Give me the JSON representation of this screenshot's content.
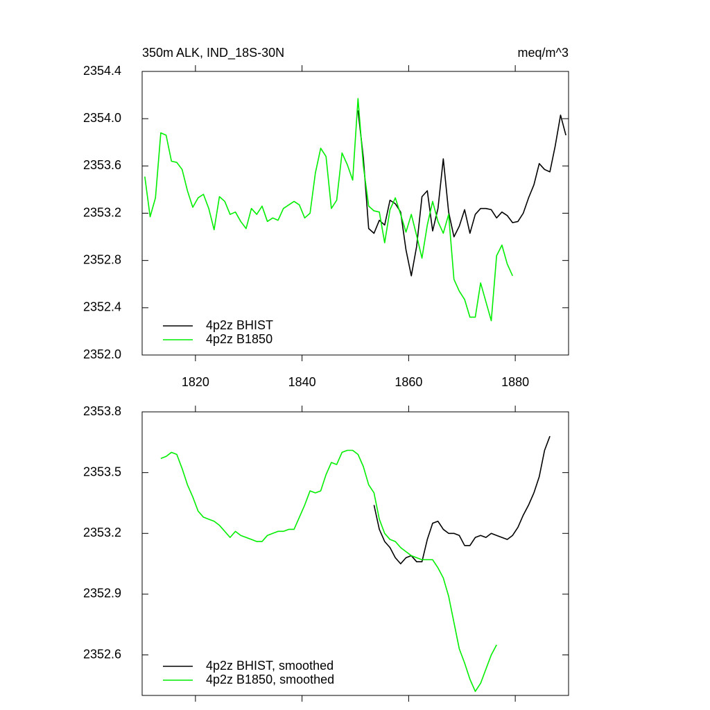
{
  "chart_data": [
    {
      "type": "line",
      "title": "350m ALK, IND_18S-30N",
      "subtitle": "meq/m^3",
      "xlim": [
        1810,
        1890
      ],
      "xticks": [
        1820,
        1840,
        1860,
        1880
      ],
      "ylim": [
        2352.0,
        2354.4
      ],
      "yticks": [
        {
          "value": 2352.0,
          "label": "2352.0"
        },
        2352.4,
        2352.8,
        2353.2,
        2353.6,
        {
          "value": 2354.0,
          "label": "2354.0"
        },
        2354.4
      ],
      "legend": "lower left",
      "series": [
        {
          "name": "4p2z BHIST",
          "color": "#000000",
          "x": [
            1850.5,
            1851.5,
            1852.5,
            1853.5,
            1854.5,
            1855.5,
            1856.5,
            1857.5,
            1858.5,
            1859.5,
            1860.5,
            1861.5,
            1862.5,
            1863.5,
            1864.5,
            1865.5,
            1866.5,
            1867.5,
            1868.5,
            1869.5,
            1870.5,
            1871.5,
            1872.5,
            1873.5,
            1874.5,
            1875.5,
            1876.5,
            1877.5,
            1878.5,
            1879.5,
            1880.5,
            1881.5,
            1882.5,
            1883.5,
            1884.5,
            1885.5,
            1886.5,
            1887.5,
            1888.5,
            1889.5
          ],
          "values": [
            2354.07,
            2353.67,
            2353.07,
            2353.03,
            2353.14,
            2353.1,
            2353.31,
            2353.28,
            2353.21,
            2352.89,
            2352.67,
            2352.92,
            2353.34,
            2353.39,
            2353.05,
            2353.24,
            2353.66,
            2353.21,
            2353.0,
            2353.09,
            2353.23,
            2353.03,
            2353.19,
            2353.24,
            2353.24,
            2353.23,
            2353.16,
            2353.21,
            2353.18,
            2353.12,
            2353.13,
            2353.2,
            2353.33,
            2353.44,
            2353.62,
            2353.57,
            2353.55,
            2353.77,
            2354.03,
            2353.86
          ]
        },
        {
          "name": "4p2z B1850",
          "color": "#00ee00",
          "x": [
            1810.5,
            1811.5,
            1812.5,
            1813.5,
            1814.5,
            1815.5,
            1816.5,
            1817.5,
            1818.5,
            1819.5,
            1820.5,
            1821.5,
            1822.5,
            1823.5,
            1824.5,
            1825.5,
            1826.5,
            1827.5,
            1828.5,
            1829.5,
            1830.5,
            1831.5,
            1832.5,
            1833.5,
            1834.5,
            1835.5,
            1836.5,
            1837.5,
            1838.5,
            1839.5,
            1840.5,
            1841.5,
            1842.5,
            1843.5,
            1844.5,
            1845.5,
            1846.5,
            1847.5,
            1848.5,
            1849.5,
            1850.5,
            1851.5,
            1852.5,
            1853.5,
            1854.5,
            1855.5,
            1856.5,
            1857.5,
            1858.5,
            1859.5,
            1860.5,
            1861.5,
            1862.5,
            1863.5,
            1864.5,
            1865.5,
            1866.5,
            1867.5,
            1868.5,
            1869.5,
            1870.5,
            1871.5,
            1872.5,
            1873.5,
            1874.5,
            1875.5,
            1876.5,
            1877.5,
            1878.5,
            1879.5
          ],
          "values": [
            2353.51,
            2353.17,
            2353.33,
            2353.88,
            2353.86,
            2353.64,
            2353.63,
            2353.57,
            2353.39,
            2353.25,
            2353.33,
            2353.36,
            2353.24,
            2353.06,
            2353.34,
            2353.3,
            2353.19,
            2353.21,
            2353.13,
            2353.07,
            2353.24,
            2353.19,
            2353.26,
            2353.13,
            2353.16,
            2353.14,
            2353.24,
            2353.27,
            2353.3,
            2353.27,
            2353.16,
            2353.2,
            2353.54,
            2353.75,
            2353.68,
            2353.24,
            2353.31,
            2353.71,
            2353.61,
            2353.48,
            2354.17,
            2353.6,
            2353.26,
            2353.22,
            2353.21,
            2352.95,
            2353.23,
            2353.33,
            2353.19,
            2353.04,
            2353.19,
            2353.01,
            2352.82,
            2353.1,
            2353.3,
            2353.13,
            2353.03,
            2353.19,
            2352.64,
            2352.54,
            2352.47,
            2352.32,
            2352.32,
            2352.61,
            2352.45,
            2352.29,
            2352.84,
            2352.93,
            2352.77,
            2352.67
          ]
        }
      ]
    },
    {
      "type": "line",
      "xlim": [
        1810,
        1890
      ],
      "xticks": [
        1820,
        1840,
        1860,
        1880
      ],
      "ylim": [
        2352.4,
        2353.8
      ],
      "yticks": [
        2352.6,
        2352.9,
        2353.2,
        2353.5,
        2353.8
      ],
      "legend": "lower left",
      "series": [
        {
          "name": "4p2z BHIST, smoothed",
          "color": "#000000",
          "x": [
            1853.5,
            1854.5,
            1855.5,
            1856.5,
            1857.5,
            1858.5,
            1859.5,
            1860.5,
            1861.5,
            1862.5,
            1863.5,
            1864.5,
            1865.5,
            1866.5,
            1867.5,
            1868.5,
            1869.5,
            1870.5,
            1871.5,
            1872.5,
            1873.5,
            1874.5,
            1875.5,
            1876.5,
            1877.5,
            1878.5,
            1879.5,
            1880.5,
            1881.5,
            1882.5,
            1883.5,
            1884.5,
            1885.5,
            1886.5
          ],
          "values": [
            2353.34,
            2353.22,
            2353.16,
            2353.13,
            2353.08,
            2353.05,
            2353.08,
            2353.09,
            2353.06,
            2353.06,
            2353.17,
            2353.25,
            2353.26,
            2353.22,
            2353.2,
            2353.2,
            2353.19,
            2353.14,
            2353.14,
            2353.18,
            2353.19,
            2353.18,
            2353.2,
            2353.19,
            2353.18,
            2353.17,
            2353.19,
            2353.23,
            2353.29,
            2353.34,
            2353.4,
            2353.48,
            2353.61,
            2353.68
          ]
        },
        {
          "name": "4p2z B1850, smoothed",
          "color": "#00ee00",
          "x": [
            1813.5,
            1814.5,
            1815.5,
            1816.5,
            1817.5,
            1818.5,
            1819.5,
            1820.5,
            1821.5,
            1822.5,
            1823.5,
            1824.5,
            1825.5,
            1826.5,
            1827.5,
            1828.5,
            1829.5,
            1830.5,
            1831.5,
            1832.5,
            1833.5,
            1834.5,
            1835.5,
            1836.5,
            1837.5,
            1838.5,
            1839.5,
            1840.5,
            1841.5,
            1842.5,
            1843.5,
            1844.5,
            1845.5,
            1846.5,
            1847.5,
            1848.5,
            1849.5,
            1850.5,
            1851.5,
            1852.5,
            1853.5,
            1854.5,
            1855.5,
            1856.5,
            1857.5,
            1858.5,
            1859.5,
            1860.5,
            1861.5,
            1862.5,
            1863.5,
            1864.5,
            1865.5,
            1866.5,
            1867.5,
            1868.5,
            1869.5,
            1870.5,
            1871.5,
            1872.5,
            1873.5,
            1874.5,
            1875.5,
            1876.5
          ],
          "values": [
            2353.57,
            2353.58,
            2353.6,
            2353.59,
            2353.52,
            2353.44,
            2353.38,
            2353.31,
            2353.28,
            2353.27,
            2353.26,
            2353.24,
            2353.21,
            2353.18,
            2353.21,
            2353.19,
            2353.18,
            2353.17,
            2353.16,
            2353.16,
            2353.19,
            2353.2,
            2353.21,
            2353.21,
            2353.22,
            2353.22,
            2353.28,
            2353.34,
            2353.41,
            2353.4,
            2353.41,
            2353.49,
            2353.55,
            2353.54,
            2353.6,
            2353.61,
            2353.61,
            2353.59,
            2353.53,
            2353.44,
            2353.4,
            2353.27,
            2353.2,
            2353.17,
            2353.16,
            2353.13,
            2353.11,
            2353.09,
            2353.08,
            2353.07,
            2353.07,
            2353.07,
            2353.03,
            2352.98,
            2352.89,
            2352.76,
            2352.63,
            2352.56,
            2352.48,
            2352.42,
            2352.46,
            2352.53,
            2352.6,
            2352.65
          ]
        }
      ]
    }
  ]
}
